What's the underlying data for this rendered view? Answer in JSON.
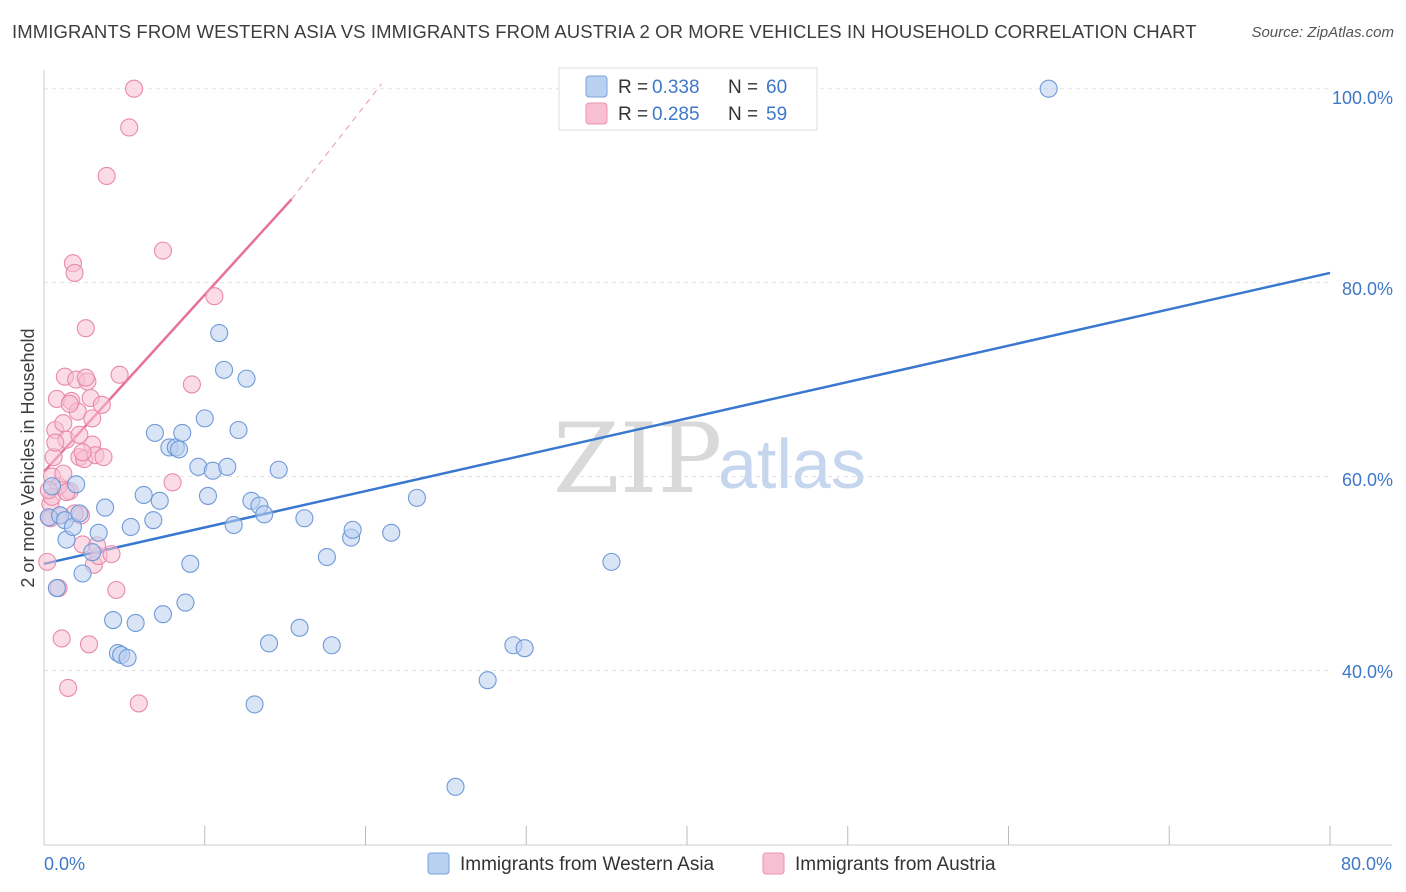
{
  "title": "IMMIGRANTS FROM WESTERN ASIA VS IMMIGRANTS FROM AUSTRIA 2 OR MORE VEHICLES IN HOUSEHOLD CORRELATION CHART",
  "source": "Source: ZipAtlas.com",
  "colors": {
    "blue": "#3a78d0",
    "blue_fill": "#b9d0f0",
    "pink": "#e8709a",
    "pink_fill": "#f7c0d2",
    "axis_text": "#3f78c8"
  },
  "chart_data": {
    "type": "scatter",
    "xlabel": "",
    "ylabel": "2 or more Vehicles in Household",
    "xlim": [
      0,
      80
    ],
    "ylim": [
      22,
      101
    ],
    "x_tick_labels": [
      "0.0%",
      "80.0%"
    ],
    "y_ticks": [
      40,
      60,
      80,
      100
    ],
    "y_tick_labels": [
      "40.0%",
      "60.0%",
      "80.0%",
      "100.0%"
    ],
    "watermark": {
      "zip": "ZIP",
      "atlas": "atlas"
    },
    "legend": [
      {
        "r_label": "R = ",
        "r_value": "0.338",
        "n_label": "N = ",
        "n_value": "60"
      },
      {
        "r_label": "R = ",
        "r_value": "0.285",
        "n_label": "N = ",
        "n_value": "59"
      }
    ],
    "series": [
      {
        "name": "Immigrants from Western Asia",
        "color": "#3a78d0",
        "trend": {
          "x0": 0,
          "y0": 51.0,
          "x1": 80,
          "y1": 81.0
        },
        "points": [
          [
            0.3,
            55.8
          ],
          [
            0.5,
            59.0
          ],
          [
            0.8,
            48.5
          ],
          [
            1.0,
            56.0
          ],
          [
            1.3,
            55.5
          ],
          [
            1.4,
            53.5
          ],
          [
            1.8,
            54.8
          ],
          [
            2.0,
            59.2
          ],
          [
            2.2,
            56.2
          ],
          [
            2.4,
            50.0
          ],
          [
            3.0,
            52.2
          ],
          [
            3.4,
            54.2
          ],
          [
            3.8,
            56.8
          ],
          [
            4.3,
            45.2
          ],
          [
            4.6,
            41.8
          ],
          [
            4.8,
            41.6
          ],
          [
            5.2,
            41.3
          ],
          [
            5.4,
            54.8
          ],
          [
            5.7,
            44.9
          ],
          [
            6.2,
            58.1
          ],
          [
            6.8,
            55.5
          ],
          [
            6.9,
            64.5
          ],
          [
            7.2,
            57.5
          ],
          [
            7.4,
            45.8
          ],
          [
            7.8,
            63.0
          ],
          [
            8.2,
            63.0
          ],
          [
            8.4,
            62.8
          ],
          [
            8.6,
            64.5
          ],
          [
            8.8,
            47.0
          ],
          [
            9.1,
            51.0
          ],
          [
            9.6,
            61.0
          ],
          [
            10.0,
            66.0
          ],
          [
            10.2,
            58.0
          ],
          [
            10.5,
            60.6
          ],
          [
            10.9,
            74.8
          ],
          [
            11.2,
            71.0
          ],
          [
            11.4,
            61.0
          ],
          [
            11.8,
            55.0
          ],
          [
            12.1,
            64.8
          ],
          [
            12.6,
            70.1
          ],
          [
            12.9,
            57.5
          ],
          [
            13.1,
            36.5
          ],
          [
            13.4,
            57.0
          ],
          [
            13.7,
            56.1
          ],
          [
            14.0,
            42.8
          ],
          [
            14.6,
            60.7
          ],
          [
            15.9,
            44.4
          ],
          [
            16.2,
            55.7
          ],
          [
            17.6,
            51.7
          ],
          [
            17.9,
            42.6
          ],
          [
            19.1,
            53.7
          ],
          [
            19.2,
            54.5
          ],
          [
            21.6,
            54.2
          ],
          [
            23.2,
            57.8
          ],
          [
            25.6,
            28.0
          ],
          [
            27.6,
            39.0
          ],
          [
            29.2,
            42.6
          ],
          [
            29.9,
            42.3
          ],
          [
            35.3,
            51.2
          ],
          [
            62.5,
            100.0
          ]
        ]
      },
      {
        "name": "Immigrants from Austria",
        "color": "#e8709a",
        "trend": {
          "x0": 0,
          "y0": 60.5,
          "x1": 15.4,
          "y1": 88.6
        },
        "trend_dashed": {
          "x0": 15.4,
          "y0": 88.6,
          "x1": 21.0,
          "y1": 100.5
        },
        "points": [
          [
            0.2,
            51.2
          ],
          [
            0.3,
            55.8
          ],
          [
            0.4,
            57.2
          ],
          [
            0.5,
            60.0
          ],
          [
            0.6,
            62.0
          ],
          [
            0.7,
            64.8
          ],
          [
            0.8,
            68.0
          ],
          [
            0.9,
            48.5
          ],
          [
            1.0,
            56.0
          ],
          [
            1.1,
            43.3
          ],
          [
            1.2,
            65.5
          ],
          [
            1.3,
            70.3
          ],
          [
            1.4,
            63.8
          ],
          [
            1.5,
            38.2
          ],
          [
            1.6,
            58.5
          ],
          [
            1.7,
            67.8
          ],
          [
            1.8,
            82.0
          ],
          [
            1.9,
            81.0
          ],
          [
            2.0,
            70.0
          ],
          [
            2.1,
            66.7
          ],
          [
            2.2,
            62.0
          ],
          [
            2.3,
            56.0
          ],
          [
            2.4,
            53.0
          ],
          [
            2.5,
            61.8
          ],
          [
            2.6,
            75.3
          ],
          [
            2.7,
            69.8
          ],
          [
            2.8,
            42.7
          ],
          [
            2.9,
            68.1
          ],
          [
            3.0,
            63.3
          ],
          [
            3.1,
            50.9
          ],
          [
            3.2,
            62.2
          ],
          [
            3.4,
            51.8
          ],
          [
            3.6,
            67.4
          ],
          [
            3.9,
            91.0
          ],
          [
            4.2,
            52.0
          ],
          [
            4.5,
            48.3
          ],
          [
            4.7,
            70.5
          ],
          [
            5.3,
            96.0
          ],
          [
            5.6,
            100.0
          ],
          [
            5.9,
            36.6
          ],
          [
            7.4,
            83.3
          ],
          [
            8.0,
            59.4
          ],
          [
            9.2,
            69.5
          ],
          [
            10.6,
            78.6
          ],
          [
            0.9,
            59.0
          ],
          [
            1.6,
            67.5
          ],
          [
            2.2,
            64.3
          ],
          [
            3.0,
            66.0
          ],
          [
            0.5,
            57.9
          ],
          [
            1.9,
            56.2
          ],
          [
            0.7,
            63.5
          ],
          [
            1.2,
            60.3
          ],
          [
            2.4,
            62.5
          ],
          [
            3.3,
            52.9
          ],
          [
            0.4,
            55.7
          ],
          [
            1.4,
            58.4
          ],
          [
            2.6,
            70.2
          ],
          [
            3.7,
            62.0
          ],
          [
            0.3,
            58.6
          ]
        ]
      }
    ]
  }
}
